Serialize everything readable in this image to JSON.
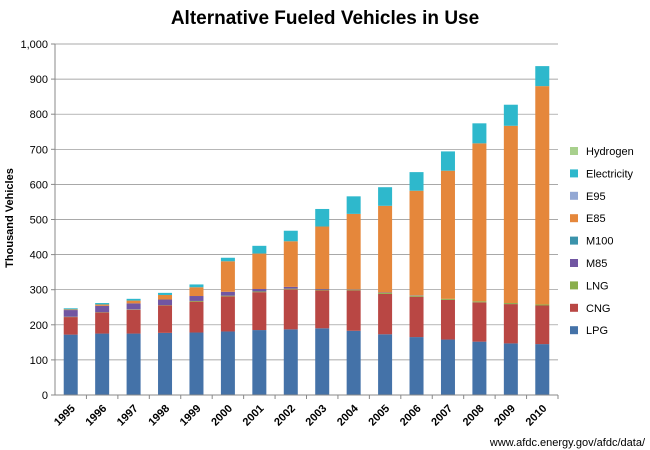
{
  "chart_data": {
    "type": "bar",
    "stacked": true,
    "title": "Alternative Fueled Vehicles in Use",
    "ylabel": "Thousand Vehicles",
    "xlabel": "",
    "source": "www.afdc.energy.gov/afdc/data/",
    "ylim": [
      0,
      1000
    ],
    "yticks": [
      "0",
      "100",
      "200",
      "300",
      "400",
      "500",
      "600",
      "700",
      "800",
      "900",
      "1,000"
    ],
    "ytick_values": [
      0,
      100,
      200,
      300,
      400,
      500,
      600,
      700,
      800,
      900,
      1000
    ],
    "grid": true,
    "legend_position": "right",
    "categories": [
      "1995",
      "1996",
      "1997",
      "1998",
      "1999",
      "2000",
      "2001",
      "2002",
      "2003",
      "2004",
      "2005",
      "2006",
      "2007",
      "2008",
      "2009",
      "2010"
    ],
    "series": [
      {
        "name": "LPG",
        "color": "#4472A8",
        "values": [
          172,
          175,
          175,
          177,
          178,
          181,
          185,
          187,
          190,
          183,
          173,
          165,
          158,
          152,
          147,
          145
        ]
      },
      {
        "name": "CNG",
        "color": "#B94744",
        "values": [
          50,
          60,
          68,
          78,
          88,
          100,
          108,
          114,
          108,
          115,
          115,
          115,
          113,
          112,
          112,
          110
        ]
      },
      {
        "name": "LNG",
        "color": "#8AAE4B",
        "values": [
          1,
          1,
          1,
          1,
          2,
          2,
          2,
          2,
          2,
          2,
          3,
          3,
          3,
          3,
          3,
          3
        ]
      },
      {
        "name": "M85",
        "color": "#7156A2",
        "values": [
          19,
          18,
          17,
          16,
          14,
          11,
          7,
          5,
          2,
          1,
          1,
          1,
          0,
          0,
          0,
          0
        ]
      },
      {
        "name": "M100",
        "color": "#3B93AB",
        "values": [
          0,
          0,
          0,
          0,
          0,
          0,
          0,
          0,
          0,
          0,
          0,
          0,
          0,
          0,
          0,
          0
        ]
      },
      {
        "name": "E85",
        "color": "#E5873B",
        "values": [
          2,
          4,
          8,
          13,
          25,
          87,
          101,
          130,
          178,
          215,
          247,
          298,
          365,
          450,
          505,
          622
        ]
      },
      {
        "name": "E95",
        "color": "#93A8D4",
        "values": [
          0,
          0,
          0,
          0,
          0,
          0,
          0,
          0,
          0,
          0,
          0,
          0,
          0,
          0,
          0,
          0
        ]
      },
      {
        "name": "Electricity",
        "color": "#2EB8CC",
        "values": [
          3,
          4,
          5,
          6,
          8,
          10,
          22,
          30,
          50,
          50,
          53,
          53,
          55,
          57,
          60,
          57
        ]
      },
      {
        "name": "Hydrogen",
        "color": "#A8D08D",
        "values": [
          0,
          0,
          0,
          0,
          0,
          0,
          0,
          0,
          0,
          0,
          0,
          0,
          0,
          0,
          0,
          0
        ]
      }
    ]
  }
}
